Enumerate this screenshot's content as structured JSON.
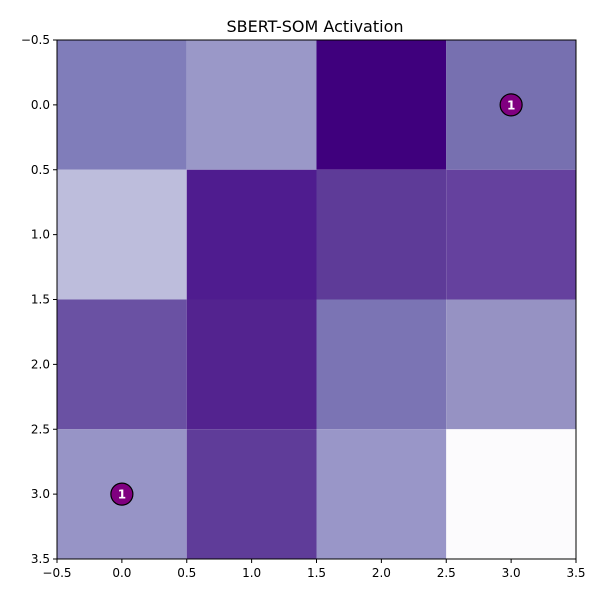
{
  "chart_data": {
    "type": "heatmap",
    "title": "SBERT-SOM Activation",
    "xlabel": "",
    "ylabel": "",
    "xlim": [
      -0.5,
      3.5
    ],
    "ylim": [
      3.5,
      -0.5
    ],
    "x_ticks": [
      "−0.5",
      "0.0",
      "0.5",
      "1.0",
      "1.5",
      "2.0",
      "2.5",
      "3.0",
      "3.5"
    ],
    "y_ticks": [
      "−0.5",
      "0.0",
      "0.5",
      "1.0",
      "1.5",
      "2.0",
      "2.5",
      "3.0",
      "3.5"
    ],
    "grid": false,
    "colormap": "Purples",
    "colors": [
      [
        "#807dba",
        "#9a98c8",
        "#3f007d",
        "#7770b0"
      ],
      [
        "#bdbddc",
        "#4f1c8f",
        "#5e3b98",
        "#65419e"
      ],
      [
        "#6a51a3",
        "#53238f",
        "#7b74b4",
        "#9692c3"
      ],
      [
        "#9794c6",
        "#5f3c99",
        "#9996c8",
        "#fcfbfd"
      ]
    ],
    "markers": [
      {
        "x": 3,
        "y": 0,
        "label": "1",
        "color": "#800080"
      },
      {
        "x": 0,
        "y": 3,
        "label": "1",
        "color": "#800080"
      }
    ]
  }
}
